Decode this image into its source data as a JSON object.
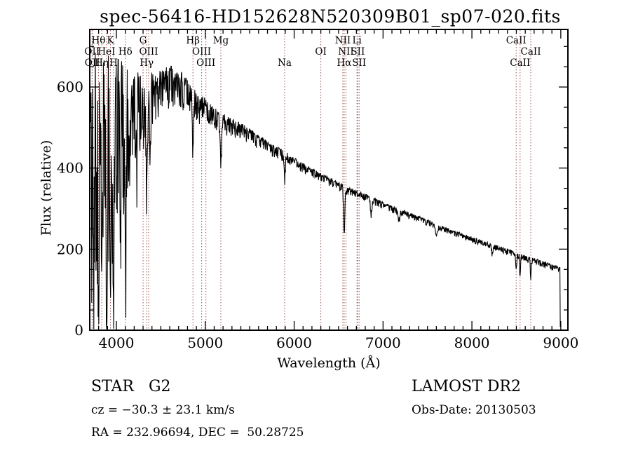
{
  "chart_data": {
    "type": "line",
    "title": "spec-56416-HD152628N520309B01_sp07-020.fits",
    "xlabel": "Wavelength (Å)",
    "ylabel": "Flux (relative)",
    "xlim": [
      3700,
      9080
    ],
    "ylim": [
      0,
      742
    ],
    "x_major_ticks": [
      4000,
      5000,
      6000,
      7000,
      8000,
      9000
    ],
    "x_minor_step": 100,
    "y_major_ticks": [
      0,
      200,
      400,
      600
    ],
    "y_minor_step": 50,
    "grid": false,
    "legend": "none",
    "spectrum_color": "#000000",
    "line_marker_color": "#9a5252",
    "spectral_lines": [
      {
        "label": "OII",
        "wavelength": 3726,
        "row": 2
      },
      {
        "label": "OII",
        "wavelength": 3729,
        "row": 3
      },
      {
        "label": "Hθ",
        "wavelength": 3798,
        "row": 1
      },
      {
        "label": "Hη",
        "wavelength": 3835,
        "row": 3
      },
      {
        "label": "HeI",
        "wavelength": 3889,
        "row": 2
      },
      {
        "label": "K",
        "wavelength": 3933,
        "row": 1
      },
      {
        "label": "H",
        "wavelength": 3968,
        "row": 3
      },
      {
        "label": "Hδ",
        "wavelength": 4101,
        "row": 2
      },
      {
        "label": "G",
        "wavelength": 4300,
        "row": 1
      },
      {
        "label": "Hγ",
        "wavelength": 4340,
        "row": 3
      },
      {
        "label": "OIII",
        "wavelength": 4363,
        "row": 2
      },
      {
        "label": "Hβ",
        "wavelength": 4861,
        "row": 1
      },
      {
        "label": "OIII",
        "wavelength": 4959,
        "row": 2
      },
      {
        "label": "OIII",
        "wavelength": 5007,
        "row": 3
      },
      {
        "label": "Mg",
        "wavelength": 5175,
        "row": 1
      },
      {
        "label": "Na",
        "wavelength": 5893,
        "row": 3
      },
      {
        "label": "OI",
        "wavelength": 6300,
        "row": 2
      },
      {
        "label": "NII",
        "wavelength": 6548,
        "row": 1
      },
      {
        "label": "Hα",
        "wavelength": 6563,
        "row": 3
      },
      {
        "label": "NII",
        "wavelength": 6583,
        "row": 2
      },
      {
        "label": "Li",
        "wavelength": 6707,
        "row": 1
      },
      {
        "label": "SII",
        "wavelength": 6716,
        "row": 2
      },
      {
        "label": "SII",
        "wavelength": 6731,
        "row": 3
      },
      {
        "label": "CaII",
        "wavelength": 8498,
        "row": 1
      },
      {
        "label": "CaII",
        "wavelength": 8542,
        "row": 3
      },
      {
        "label": "CaII",
        "wavelength": 8662,
        "row": 2
      }
    ],
    "spectrum": {
      "wavelength_start": 3702,
      "wavelength_end": 8996,
      "sample_step": 4,
      "seed": 20130503,
      "continuum": [
        [
          3700,
          500
        ],
        [
          3740,
          545
        ],
        [
          3800,
          555
        ],
        [
          3860,
          550
        ],
        [
          3920,
          550
        ],
        [
          3980,
          555
        ],
        [
          4040,
          560
        ],
        [
          4100,
          555
        ],
        [
          4160,
          575
        ],
        [
          4220,
          575
        ],
        [
          4280,
          565
        ],
        [
          4340,
          570
        ],
        [
          4400,
          595
        ],
        [
          4460,
          605
        ],
        [
          4520,
          612
        ],
        [
          4580,
          618
        ],
        [
          4640,
          622
        ],
        [
          4700,
          615
        ],
        [
          4760,
          605
        ],
        [
          4820,
          595
        ],
        [
          4880,
          575
        ],
        [
          4940,
          560
        ],
        [
          5000,
          552
        ],
        [
          5060,
          545
        ],
        [
          5120,
          535
        ],
        [
          5180,
          520
        ],
        [
          5240,
          515
        ],
        [
          5300,
          508
        ],
        [
          5360,
          502
        ],
        [
          5420,
          496
        ],
        [
          5480,
          488
        ],
        [
          5540,
          480
        ],
        [
          5600,
          472
        ],
        [
          5660,
          464
        ],
        [
          5720,
          456
        ],
        [
          5780,
          448
        ],
        [
          5840,
          440
        ],
        [
          5900,
          432
        ],
        [
          5960,
          424
        ],
        [
          6020,
          416
        ],
        [
          6080,
          408
        ],
        [
          6140,
          401
        ],
        [
          6200,
          394
        ],
        [
          6260,
          387
        ],
        [
          6320,
          380
        ],
        [
          6380,
          373
        ],
        [
          6440,
          366
        ],
        [
          6500,
          358
        ],
        [
          6560,
          352
        ],
        [
          6620,
          346
        ],
        [
          6680,
          341
        ],
        [
          6740,
          336
        ],
        [
          6800,
          331
        ],
        [
          6860,
          325
        ],
        [
          6920,
          319
        ],
        [
          6980,
          313
        ],
        [
          7100,
          302
        ],
        [
          7220,
          292
        ],
        [
          7340,
          283
        ],
        [
          7460,
          272
        ],
        [
          7580,
          261
        ],
        [
          7700,
          250
        ],
        [
          7820,
          240
        ],
        [
          7940,
          231
        ],
        [
          8060,
          222
        ],
        [
          8180,
          213
        ],
        [
          8300,
          204
        ],
        [
          8420,
          196
        ],
        [
          8540,
          186
        ],
        [
          8660,
          176
        ],
        [
          8780,
          167
        ],
        [
          8900,
          158
        ],
        [
          8990,
          152
        ]
      ],
      "noise_amplitude": [
        [
          3700,
          380
        ],
        [
          3760,
          330
        ],
        [
          3820,
          300
        ],
        [
          3880,
          280
        ],
        [
          3940,
          290
        ],
        [
          4000,
          230
        ],
        [
          4060,
          210
        ],
        [
          4120,
          190
        ],
        [
          4200,
          140
        ],
        [
          4300,
          110
        ],
        [
          4400,
          80
        ],
        [
          4500,
          62
        ],
        [
          4600,
          58
        ],
        [
          4700,
          55
        ],
        [
          4800,
          50
        ],
        [
          4900,
          45
        ],
        [
          5000,
          38
        ],
        [
          5100,
          34
        ],
        [
          5200,
          30
        ],
        [
          5400,
          24
        ],
        [
          5600,
          20
        ],
        [
          5800,
          18
        ],
        [
          6000,
          15
        ],
        [
          6300,
          13
        ],
        [
          6600,
          12
        ],
        [
          7000,
          10
        ],
        [
          7500,
          9
        ],
        [
          8000,
          8
        ],
        [
          8400,
          9
        ],
        [
          8700,
          10
        ],
        [
          9000,
          8
        ]
      ],
      "absorption_features": [
        {
          "center": 3727,
          "depth": 260,
          "sigma": 5
        },
        {
          "center": 3750,
          "depth": 300,
          "sigma": 5
        },
        {
          "center": 3798,
          "depth": 380,
          "sigma": 6
        },
        {
          "center": 3835,
          "depth": 420,
          "sigma": 6
        },
        {
          "center": 3889,
          "depth": 450,
          "sigma": 7
        },
        {
          "center": 3933,
          "depth": 500,
          "sigma": 8
        },
        {
          "center": 3968,
          "depth": 520,
          "sigma": 8
        },
        {
          "center": 4045,
          "depth": 260,
          "sigma": 5
        },
        {
          "center": 4101,
          "depth": 430,
          "sigma": 8
        },
        {
          "center": 4144,
          "depth": 200,
          "sigma": 5
        },
        {
          "center": 4226,
          "depth": 170,
          "sigma": 5
        },
        {
          "center": 4340,
          "depth": 210,
          "sigma": 7
        },
        {
          "center": 4383,
          "depth": 130,
          "sigma": 5
        },
        {
          "center": 4861,
          "depth": 130,
          "sigma": 8
        },
        {
          "center": 5175,
          "depth": 95,
          "sigma": 9
        },
        {
          "center": 5893,
          "depth": 55,
          "sigma": 7
        },
        {
          "center": 6563,
          "depth": 115,
          "sigma": 7
        },
        {
          "center": 6867,
          "depth": 35,
          "sigma": 9
        },
        {
          "center": 7180,
          "depth": 20,
          "sigma": 10
        },
        {
          "center": 7600,
          "depth": 28,
          "sigma": 12
        },
        {
          "center": 8230,
          "depth": 20,
          "sigma": 8
        },
        {
          "center": 8498,
          "depth": 40,
          "sigma": 6
        },
        {
          "center": 8542,
          "depth": 55,
          "sigma": 5
        },
        {
          "center": 8662,
          "depth": 45,
          "sigma": 5
        }
      ],
      "cutoff": {
        "wavelength": 8990,
        "floor_flux": 8
      }
    }
  },
  "footer": {
    "class_label": "STAR   G2",
    "survey": "LAMOST DR2",
    "cz": "cz = −30.3 ± 23.1 km/s",
    "obs_date": "Obs-Date: 20130503",
    "coords": "RA = 232.96694, DEC =  50.28725"
  }
}
